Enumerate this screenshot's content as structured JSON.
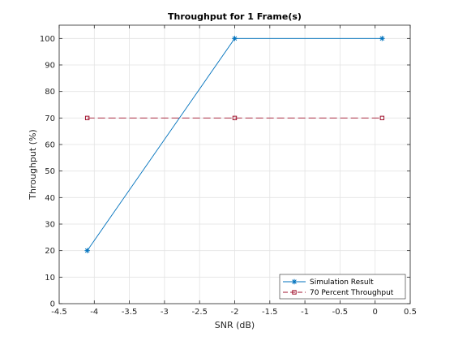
{
  "chart_data": {
    "type": "line",
    "title": "Throughput for 1 Frame(s)",
    "xlabel": "SNR (dB)",
    "ylabel": "Throughput (%)",
    "xlim": [
      -4.5,
      0.5
    ],
    "ylim": [
      0,
      105
    ],
    "xticks": [
      -4.5,
      -4,
      -3.5,
      -3,
      -2.5,
      -2,
      -1.5,
      -1,
      -0.5,
      0,
      0.5
    ],
    "xtick_labels": [
      "-4.5",
      "-4",
      "-3.5",
      "-3",
      "-2.5",
      "-2",
      "-1.5",
      "-1",
      "-0.5",
      "0",
      "0.5"
    ],
    "yticks": [
      0,
      10,
      20,
      30,
      40,
      50,
      60,
      70,
      80,
      90,
      100
    ],
    "ytick_labels": [
      "0",
      "10",
      "20",
      "30",
      "40",
      "50",
      "60",
      "70",
      "80",
      "90",
      "100"
    ],
    "grid": true,
    "legend_position": "bottom-right",
    "series": [
      {
        "name": "Simulation Result",
        "x": [
          -4.1,
          -2,
          0.1
        ],
        "y": [
          20,
          100,
          100
        ],
        "color": "#0072BD",
        "marker": "star",
        "line_style": "solid"
      },
      {
        "name": "70 Percent Throughput",
        "x": [
          -4.1,
          -2,
          0.1
        ],
        "y": [
          70,
          70,
          70
        ],
        "color": "#A2142F",
        "marker": "square",
        "line_style": "dashed"
      }
    ]
  }
}
